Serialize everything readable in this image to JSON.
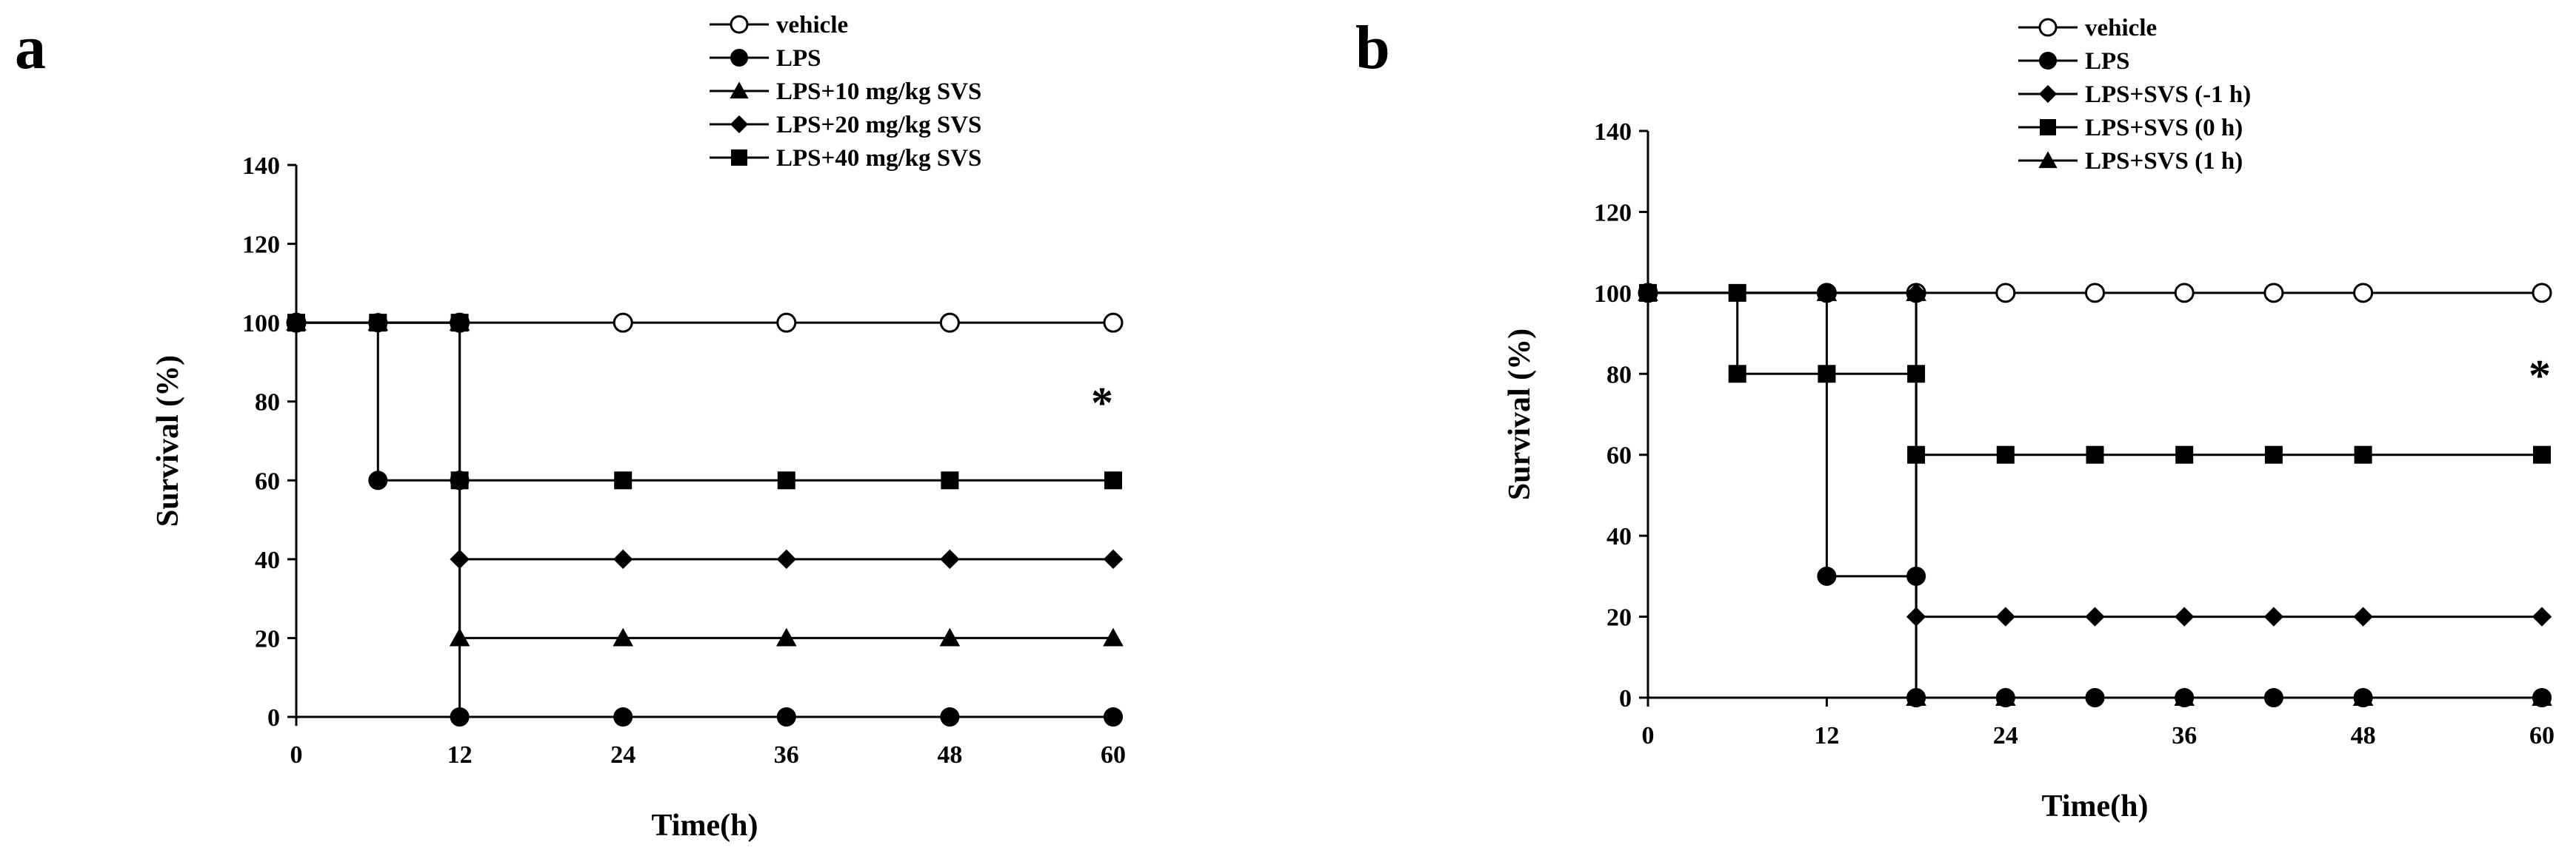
{
  "chart_data": [
    {
      "panel": "a",
      "type": "line",
      "step": true,
      "xlabel": "Time(h)",
      "ylabel": "Survival (%)",
      "xlim": [
        0,
        60
      ],
      "ylim": [
        0,
        140
      ],
      "xticks": [
        0,
        12,
        24,
        36,
        48,
        60
      ],
      "yticks": [
        0,
        20,
        40,
        60,
        80,
        100,
        120,
        140
      ],
      "legend_position": "top-right",
      "annotation": {
        "text": "*",
        "x": 60,
        "y": 80
      },
      "series": [
        {
          "name": "vehicle",
          "marker": "circle-open",
          "points": [
            [
              0,
              100
            ],
            [
              12,
              100
            ],
            [
              24,
              100
            ],
            [
              36,
              100
            ],
            [
              48,
              100
            ],
            [
              60,
              100
            ]
          ]
        },
        {
          "name": "LPS",
          "marker": "circle",
          "points": [
            [
              0,
              100
            ],
            [
              6,
              100
            ],
            [
              6,
              60
            ],
            [
              12,
              60
            ],
            [
              12,
              0
            ],
            [
              24,
              0
            ],
            [
              36,
              0
            ],
            [
              48,
              0
            ],
            [
              60,
              0
            ]
          ]
        },
        {
          "name": "LPS+10 mg/kg SVS",
          "marker": "triangle",
          "points": [
            [
              0,
              100
            ],
            [
              6,
              100
            ],
            [
              12,
              100
            ],
            [
              12,
              20
            ],
            [
              24,
              20
            ],
            [
              36,
              20
            ],
            [
              48,
              20
            ],
            [
              60,
              20
            ]
          ]
        },
        {
          "name": "LPS+20 mg/kg SVS",
          "marker": "diamond",
          "points": [
            [
              0,
              100
            ],
            [
              6,
              100
            ],
            [
              12,
              100
            ],
            [
              12,
              40
            ],
            [
              24,
              40
            ],
            [
              36,
              40
            ],
            [
              48,
              40
            ],
            [
              60,
              40
            ]
          ]
        },
        {
          "name": "LPS+40 mg/kg SVS",
          "marker": "square",
          "points": [
            [
              0,
              100
            ],
            [
              6,
              100
            ],
            [
              12,
              100
            ],
            [
              12,
              60
            ],
            [
              24,
              60
            ],
            [
              36,
              60
            ],
            [
              48,
              60
            ],
            [
              60,
              60
            ]
          ]
        }
      ]
    },
    {
      "panel": "b",
      "type": "line",
      "step": true,
      "xlabel": "Time(h)",
      "ylabel": "Survival (%)",
      "xlim": [
        0,
        60
      ],
      "ylim": [
        0,
        140
      ],
      "xticks": [
        0,
        12,
        24,
        36,
        48,
        60
      ],
      "yticks": [
        0,
        20,
        40,
        60,
        80,
        100,
        120,
        140
      ],
      "legend_position": "top-right",
      "annotation": {
        "text": "*",
        "x": 60,
        "y": 80
      },
      "series": [
        {
          "name": "vehicle",
          "marker": "circle-open",
          "points": [
            [
              0,
              100
            ],
            [
              12,
              100
            ],
            [
              18,
              100
            ],
            [
              24,
              100
            ],
            [
              30,
              100
            ],
            [
              36,
              100
            ],
            [
              42,
              100
            ],
            [
              48,
              100
            ],
            [
              60,
              100
            ]
          ]
        },
        {
          "name": "LPS",
          "marker": "circle",
          "points": [
            [
              0,
              100
            ],
            [
              12,
              100
            ],
            [
              12,
              30
            ],
            [
              18,
              30
            ],
            [
              18,
              0
            ],
            [
              24,
              0
            ],
            [
              30,
              0
            ],
            [
              36,
              0
            ],
            [
              42,
              0
            ],
            [
              48,
              0
            ],
            [
              60,
              0
            ]
          ]
        },
        {
          "name": "LPS+SVS  (-1 h)",
          "marker": "diamond",
          "points": [
            [
              0,
              100
            ],
            [
              12,
              100
            ],
            [
              18,
              100
            ],
            [
              18,
              20
            ],
            [
              24,
              20
            ],
            [
              30,
              20
            ],
            [
              36,
              20
            ],
            [
              42,
              20
            ],
            [
              48,
              20
            ],
            [
              60,
              20
            ]
          ]
        },
        {
          "name": "LPS+SVS  (0 h)",
          "marker": "square",
          "points": [
            [
              0,
              100
            ],
            [
              6,
              100
            ],
            [
              6,
              80
            ],
            [
              12,
              80
            ],
            [
              18,
              80
            ],
            [
              18,
              60
            ],
            [
              24,
              60
            ],
            [
              30,
              60
            ],
            [
              36,
              60
            ],
            [
              42,
              60
            ],
            [
              48,
              60
            ],
            [
              60,
              60
            ]
          ]
        },
        {
          "name": "LPS+SVS  (1 h)",
          "marker": "triangle",
          "points": [
            [
              0,
              100
            ],
            [
              12,
              100
            ],
            [
              18,
              100
            ],
            [
              18,
              0
            ],
            [
              24,
              0
            ],
            [
              36,
              0
            ],
            [
              48,
              0
            ],
            [
              60,
              0
            ]
          ]
        }
      ]
    }
  ]
}
